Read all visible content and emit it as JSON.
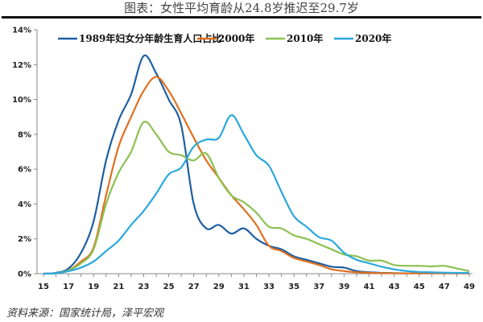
{
  "title": "图表：女性平均育龄从24.8岁推迟至29.7岁",
  "source": "资料来源：国家统计局，泽平宏观",
  "chart_data": {
    "type": "line",
    "title": "图表：女性平均育龄从24.8岁推迟至29.7岁",
    "xlabel": "",
    "ylabel": "",
    "x": [
      15,
      16,
      17,
      18,
      19,
      20,
      21,
      22,
      23,
      24,
      25,
      26,
      27,
      28,
      29,
      30,
      31,
      32,
      33,
      34,
      35,
      36,
      37,
      38,
      39,
      40,
      41,
      42,
      43,
      44,
      45,
      46,
      47,
      48,
      49
    ],
    "x_ticks": [
      "15",
      "17",
      "19",
      "21",
      "23",
      "25",
      "27",
      "29",
      "31",
      "33",
      "35",
      "37",
      "39",
      "41",
      "43",
      "45",
      "47",
      "49"
    ],
    "y_ticks": [
      "0%",
      "2%",
      "4%",
      "6%",
      "8%",
      "10%",
      "12%",
      "14%"
    ],
    "ylim": [
      0,
      14
    ],
    "legend_position": "top",
    "series": [
      {
        "name": "1989年妇女分年龄生育人口占比",
        "color": "#1f5fa0",
        "values": [
          0,
          0.05,
          0.3,
          1.2,
          3.0,
          6.5,
          8.8,
          10.3,
          12.5,
          11.5,
          10.0,
          8.5,
          4.0,
          2.6,
          2.8,
          2.3,
          2.6,
          2.0,
          1.6,
          1.4,
          1.0,
          0.8,
          0.6,
          0.4,
          0.35,
          0.15,
          0.08,
          0.05,
          0.03,
          0.02,
          0.02,
          0.02,
          0.02,
          0.02,
          0.02
        ]
      },
      {
        "name": "2000年",
        "color": "#e07020",
        "values": [
          0,
          0.03,
          0.2,
          0.7,
          1.5,
          4.5,
          7.3,
          9.0,
          10.5,
          11.3,
          10.5,
          9.2,
          7.8,
          6.5,
          5.5,
          4.5,
          3.7,
          2.8,
          1.6,
          1.3,
          0.9,
          0.7,
          0.5,
          0.25,
          0.15,
          0.08,
          0.05,
          0.03,
          0.02,
          0.02,
          0.02,
          0.02,
          0.02,
          0.02,
          0.02
        ]
      },
      {
        "name": "2010年",
        "color": "#8cc152",
        "values": [
          0,
          0.03,
          0.2,
          0.6,
          1.4,
          4.0,
          5.8,
          7.0,
          8.7,
          8.0,
          7.0,
          6.8,
          6.5,
          6.9,
          5.5,
          4.5,
          4.1,
          3.5,
          2.7,
          2.6,
          2.2,
          2.0,
          1.7,
          1.4,
          1.1,
          1.0,
          0.75,
          0.75,
          0.5,
          0.45,
          0.45,
          0.42,
          0.45,
          0.3,
          0.15
        ]
      },
      {
        "name": "2020年",
        "color": "#2aa8dc",
        "values": [
          0,
          0.03,
          0.15,
          0.35,
          0.7,
          1.3,
          1.9,
          2.8,
          3.6,
          4.6,
          5.7,
          6.1,
          7.3,
          7.7,
          7.8,
          9.1,
          8.0,
          6.8,
          6.2,
          4.7,
          3.3,
          2.7,
          2.1,
          1.9,
          1.2,
          0.8,
          0.6,
          0.4,
          0.25,
          0.15,
          0.1,
          0.08,
          0.06,
          0.05,
          0.05
        ]
      }
    ]
  }
}
